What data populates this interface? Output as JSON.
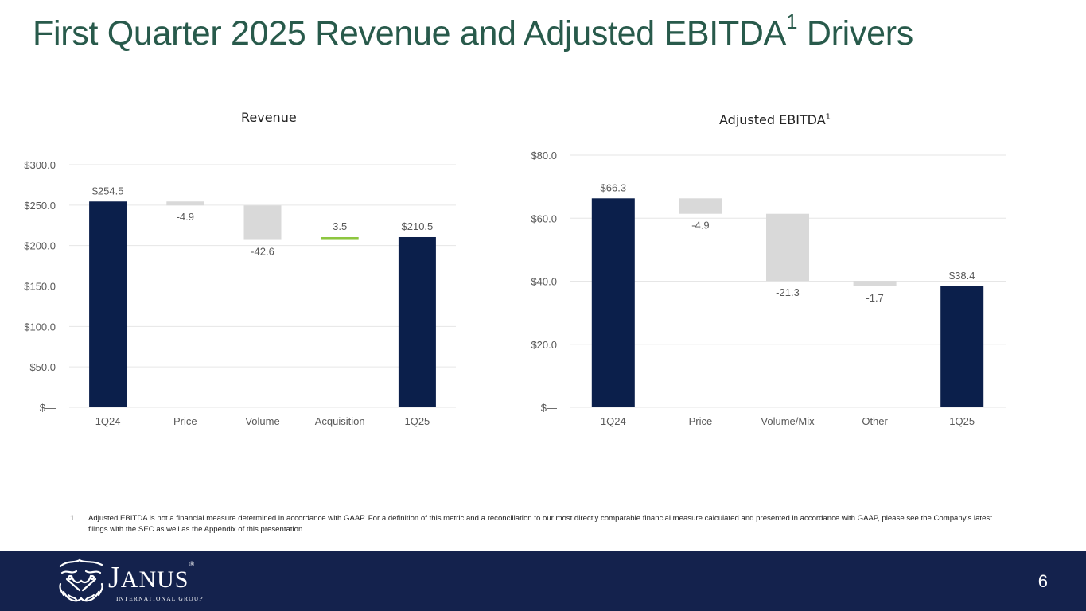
{
  "title": {
    "text": "First Quarter 2025 Revenue and Adjusted EBITDA",
    "superscript": "1",
    "suffix": " Drivers"
  },
  "colors": {
    "title": "#285a4b",
    "total_bar": "#0b1f4b",
    "decrease_bar": "#d9d9d9",
    "increase_bar": "#8dc63f",
    "footer_bg": "#14224d",
    "gridline": "#e6e6e6",
    "label": "#595959"
  },
  "chart_data": [
    {
      "type": "bar",
      "subtype": "waterfall",
      "title": "Revenue",
      "categories": [
        "1Q24",
        "Price",
        "Volume",
        "Acquisition",
        "1Q25"
      ],
      "values": [
        254.5,
        -4.9,
        -42.6,
        3.5,
        210.5
      ],
      "bar_kinds": [
        "total",
        "delta",
        "delta",
        "delta",
        "total"
      ],
      "data_labels": [
        "$254.5",
        "-4.9",
        "-42.6",
        "3.5",
        "$210.5"
      ],
      "yticks": [
        0,
        50,
        100,
        150,
        200,
        250,
        300
      ],
      "ytick_labels": [
        "$—",
        "$50.0",
        "$100.0",
        "$150.0",
        "$200.0",
        "$250.0",
        "$300.0"
      ],
      "ylim": [
        0,
        300
      ],
      "xlabel": "",
      "ylabel": "",
      "grid": true,
      "legend": "none"
    },
    {
      "type": "bar",
      "subtype": "waterfall",
      "title": "Adjusted EBITDA",
      "title_superscript": "1",
      "categories": [
        "1Q24",
        "Price",
        "Volume/Mix",
        "Other",
        "1Q25"
      ],
      "values": [
        66.3,
        -4.9,
        -21.3,
        -1.7,
        38.4
      ],
      "bar_kinds": [
        "total",
        "delta",
        "delta",
        "delta",
        "total"
      ],
      "data_labels": [
        "$66.3",
        "-4.9",
        "-21.3",
        "-1.7",
        "$38.4"
      ],
      "yticks": [
        0,
        20,
        40,
        60,
        80
      ],
      "ytick_labels": [
        "$—",
        "$20.0",
        "$40.0",
        "$60.0",
        "$80.0"
      ],
      "ylim": [
        0,
        80
      ],
      "xlabel": "",
      "ylabel": "",
      "grid": true,
      "legend": "none"
    }
  ],
  "footnote": {
    "number": "1.",
    "text": "Adjusted EBITDA is not a financial measure determined in accordance with GAAP. For a definition of this metric and a reconciliation to our most directly comparable financial measure calculated and presented in accordance with GAAP, please see the Company’s latest filings with the SEC as well as the Appendix of this presentation."
  },
  "footer": {
    "logo_word_first": "J",
    "logo_word_rest": "ANUS",
    "logo_trademark": "®",
    "logo_subtitle": "INTERNATIONAL GROUP",
    "logo_icon": "janus-head-icon",
    "page_number": "6"
  }
}
